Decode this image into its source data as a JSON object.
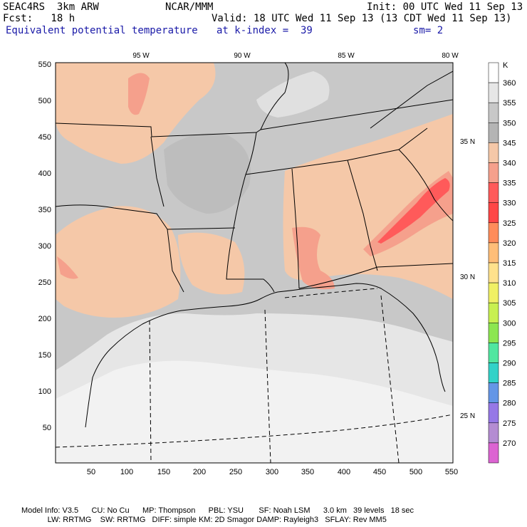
{
  "header": {
    "line1_left": "SEAC4RS  3km ARW",
    "line1_center": "NCAR/MMM",
    "line1_right": "Init: 00 UTC Wed 11 Sep 13",
    "line2_left": "Fcst:   18 h",
    "line2_right": "Valid: 18 UTC Wed 11 Sep 13 (13 CDT Wed 11 Sep 13)",
    "line3_left": "Equivalent potential temperature",
    "line3_center": "at k-index =  39",
    "line3_right": "sm= 2"
  },
  "axes": {
    "x_ticks": [
      "50",
      "100",
      "150",
      "200",
      "250",
      "300",
      "350",
      "400",
      "450",
      "500",
      "550"
    ],
    "y_ticks": [
      "550",
      "500",
      "450",
      "400",
      "350",
      "300",
      "250",
      "200",
      "150",
      "100",
      "50"
    ],
    "lon_labels": [
      "95 W",
      "90 W",
      "85 W",
      "80 W"
    ],
    "lat_labels": [
      "35 N",
      "30 N",
      "25 N"
    ]
  },
  "colorbar": {
    "unit": "K",
    "levels": [
      "360",
      "355",
      "350",
      "345",
      "340",
      "335",
      "330",
      "325",
      "320",
      "315",
      "310",
      "305",
      "300",
      "295",
      "290",
      "285",
      "280",
      "275",
      "270"
    ],
    "colors": [
      "#ffffff",
      "#e6e6e6",
      "#c8c8c8",
      "#b4b4b4",
      "#f5c8a8",
      "#f5a08c",
      "#ff5a5a",
      "#ff4646",
      "#ff8c5a",
      "#ffbe78",
      "#ffe18c",
      "#f0f064",
      "#c8f050",
      "#8ce650",
      "#50e6a0",
      "#32d2c8",
      "#6496e6",
      "#9678e6",
      "#b48cd2",
      "#dc64d2"
    ]
  },
  "map": {
    "fill_colors": {
      "base": "#c8c8c8",
      "dark": "#b4b4b4",
      "light": "#e6e6e6",
      "white": "#f4f4f4",
      "tan": "#f5c8a8",
      "salmon": "#f5a08c",
      "red": "#ff5a5a"
    }
  },
  "footer": {
    "line1": "Model Info: V3.5      CU: No Cu      MP: Thompson      PBL: YSU       SF: Noah LSM      3.0 km   39 levels   18 sec",
    "line2": "            LW: RRTMG    SW: RRTMG   DIFF: simple KM: 2D Smagor DAMP: Rayleigh3   SFLAY: Rev MM5"
  }
}
